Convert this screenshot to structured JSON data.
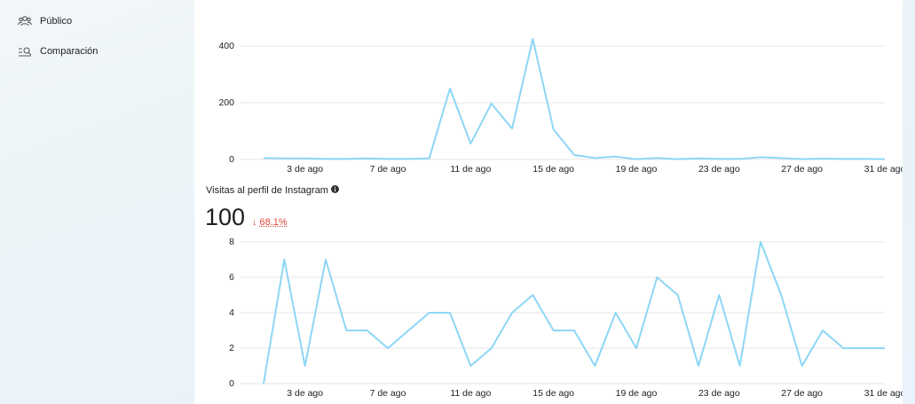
{
  "sidebar": {
    "items": [
      "Público",
      "Comparación"
    ]
  },
  "chart_data": [
    {
      "type": "line",
      "color": "#8dd6f6",
      "grid": true,
      "categories": [
        null,
        null,
        "3 de ago",
        null,
        null,
        null,
        "7 de ago",
        null,
        null,
        null,
        "11 de ago",
        null,
        null,
        null,
        "15 de ago",
        null,
        null,
        null,
        "19 de ago",
        null,
        null,
        null,
        "23 de ago",
        null,
        null,
        null,
        "27 de ago",
        null,
        null,
        null,
        "31 de ago"
      ],
      "values": [
        5,
        4,
        4,
        2,
        2,
        4,
        2,
        2,
        4,
        250,
        56,
        197,
        109,
        425,
        106,
        16,
        5,
        10,
        1,
        5,
        1,
        4,
        2,
        2,
        8,
        5,
        1,
        3,
        2,
        2,
        1
      ],
      "ylim": [
        0,
        500
      ],
      "yticks": [
        0,
        200,
        400
      ]
    },
    {
      "type": "line",
      "color": "#8dd6f6",
      "grid": true,
      "title": "Visitas al perfil de Instagram",
      "total": 100,
      "change": "68,1%",
      "categories": [
        null,
        null,
        "3 de ago",
        null,
        null,
        null,
        "7 de ago",
        null,
        null,
        null,
        "11 de ago",
        null,
        null,
        null,
        "15 de ago",
        null,
        null,
        null,
        "19 de ago",
        null,
        null,
        null,
        "23 de ago",
        null,
        null,
        null,
        "27 de ago",
        null,
        null,
        null,
        "31 de ago"
      ],
      "values": [
        0,
        7,
        1,
        7,
        3,
        3,
        2,
        3,
        4,
        4,
        1,
        2,
        4,
        5,
        3,
        3,
        1,
        4,
        2,
        6,
        5,
        1,
        5,
        1,
        8,
        5,
        1,
        3,
        2,
        2,
        2
      ],
      "ylim": [
        0,
        8
      ],
      "yticks": [
        0,
        2,
        4,
        6,
        8
      ]
    }
  ]
}
